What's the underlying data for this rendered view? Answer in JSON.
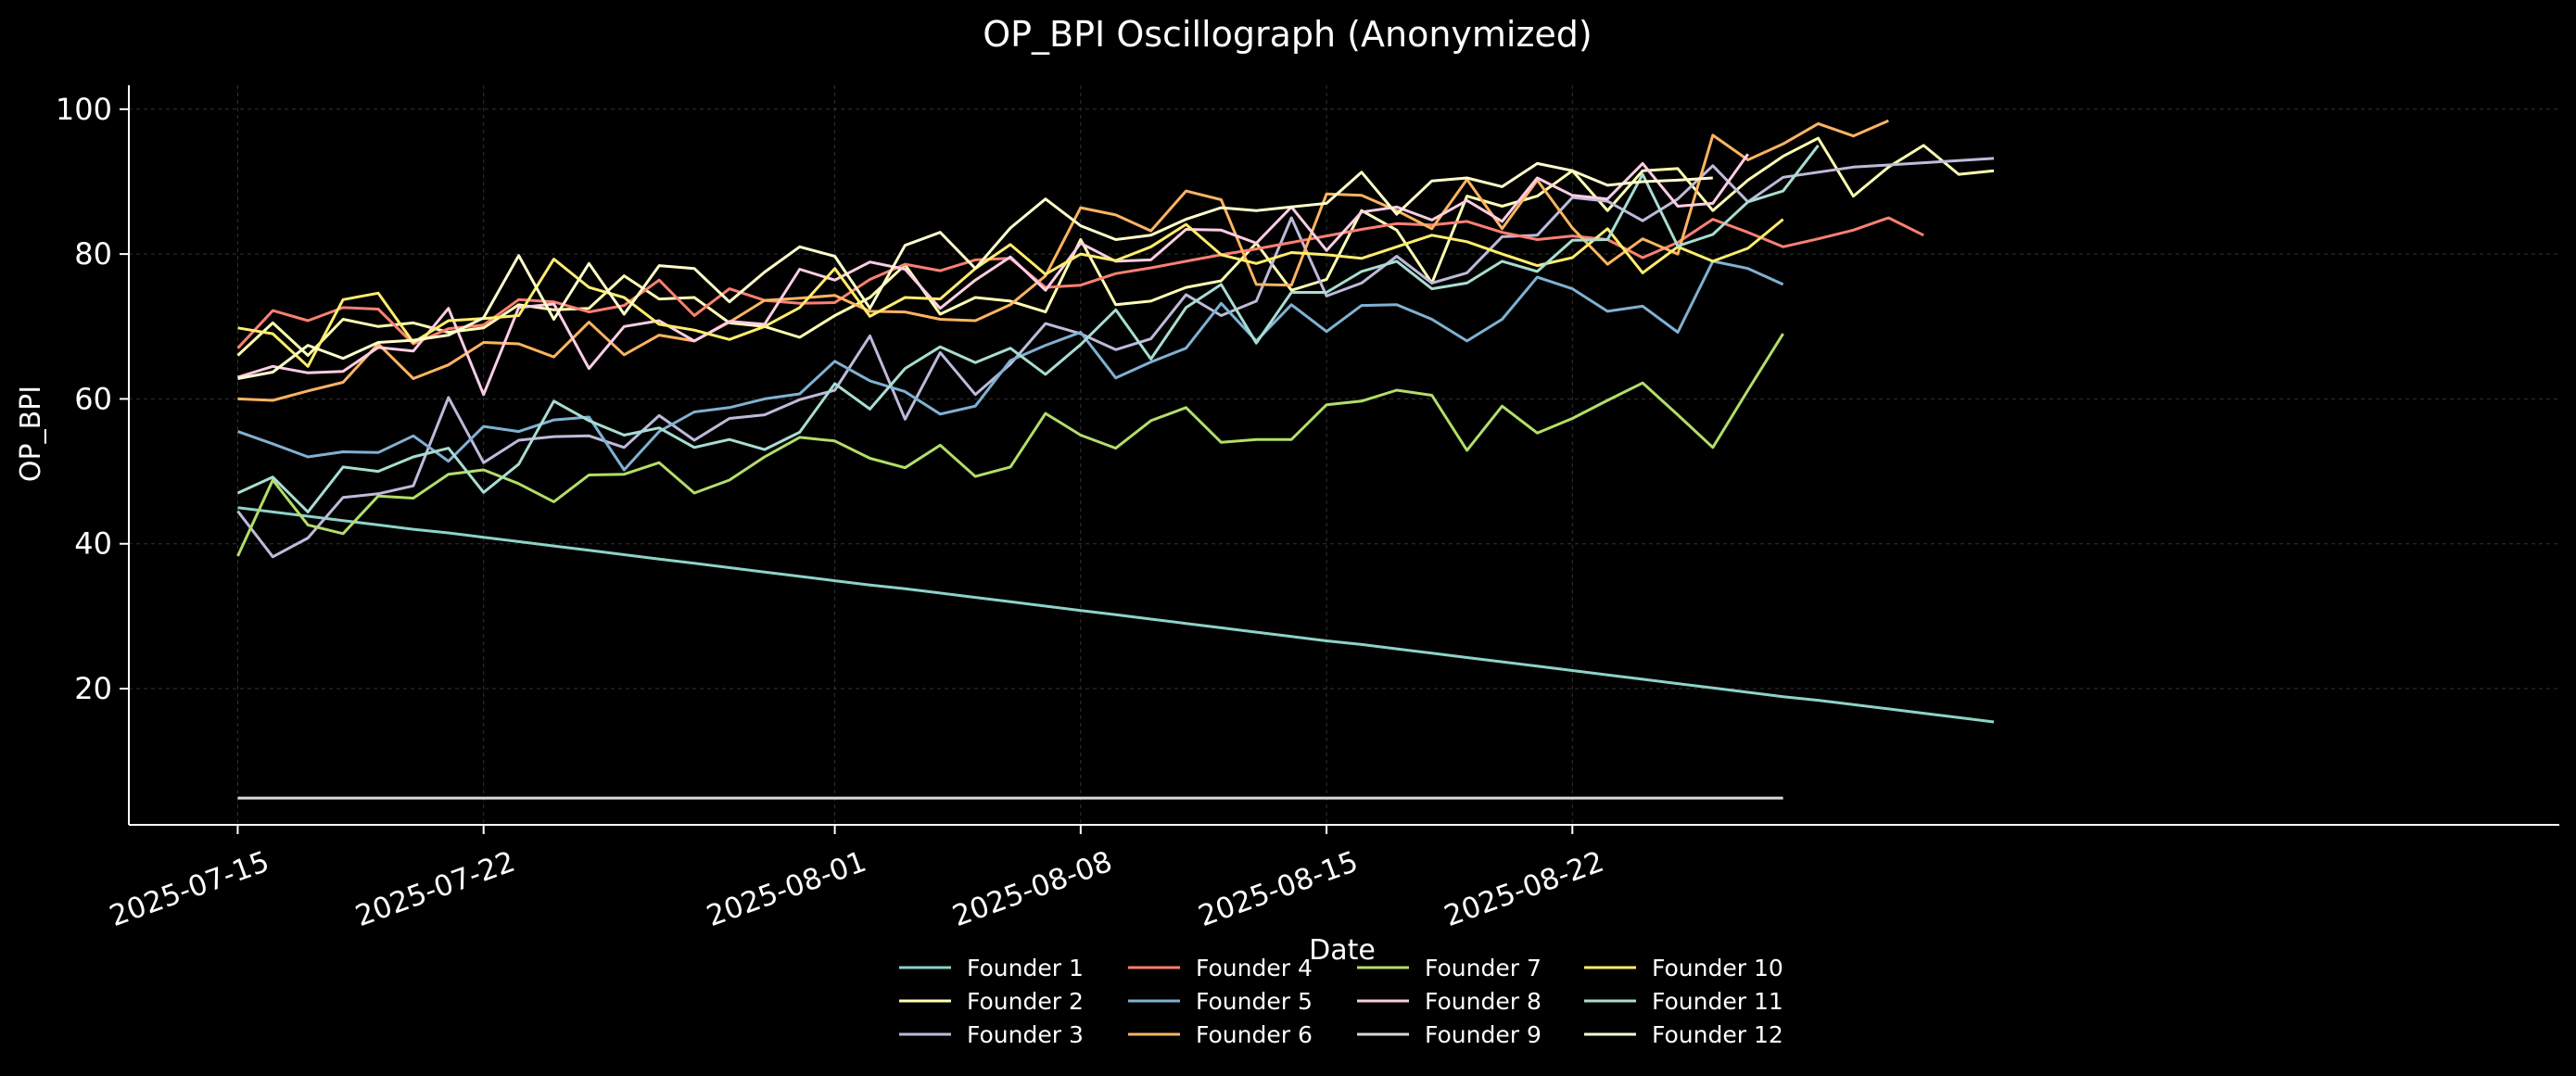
{
  "chart_data": {
    "type": "line",
    "title": "OP_BPI Oscillograph (Anonymized)",
    "xlabel": "Date",
    "ylabel": "OP_BPI",
    "grid": true,
    "legend_position": "bottom-center",
    "background": "#000000",
    "ylim": [
      1.2,
      103.3
    ],
    "yticks": [
      20,
      40,
      60,
      80,
      100
    ],
    "xlim_day_offsets": [
      -3.1,
      66.1
    ],
    "x_start_date": "2025-07-15",
    "xticks": [
      {
        "day": 0,
        "label": "2025-07-15"
      },
      {
        "day": 7,
        "label": "2025-07-22"
      },
      {
        "day": 17,
        "label": "2025-08-01"
      },
      {
        "day": 24,
        "label": "2025-08-08"
      },
      {
        "day": 31,
        "label": "2025-08-15"
      },
      {
        "day": 38,
        "label": "2025-08-22"
      }
    ],
    "series": [
      {
        "name": "Founder 1",
        "color": "#8dd3c7",
        "values": [
          45.0,
          44.4,
          43.8,
          43.2,
          42.6,
          42.0,
          41.5,
          40.9,
          40.3,
          39.7,
          39.1,
          38.5,
          37.9,
          37.3,
          36.7,
          36.1,
          35.5,
          34.9,
          34.3,
          33.8,
          33.2,
          32.6,
          32.0,
          31.4,
          30.8,
          30.2,
          29.6,
          29.0,
          28.4,
          27.8,
          27.2,
          26.6,
          26.1,
          25.5,
          24.9,
          24.3,
          23.7,
          23.1,
          22.5,
          21.9,
          21.3,
          20.7,
          20.1,
          19.5,
          18.9,
          18.4,
          17.8,
          17.2,
          16.6,
          16.0,
          15.4
        ]
      },
      {
        "name": "Founder 2",
        "color": "#ffffb3",
        "values": [
          66.0,
          70.5,
          66.0,
          71.0,
          70.0,
          70.5,
          69.2,
          69.8,
          73.0,
          72.3,
          72.5,
          77.0,
          73.8,
          74.0,
          70.5,
          70.0,
          68.5,
          71.5,
          74.0,
          78.5,
          71.7,
          74.0,
          73.5,
          72.0,
          82.0,
          73.0,
          73.5,
          75.4,
          76.3,
          81.5,
          75.0,
          76.5,
          86.0,
          83.3,
          76.0,
          88.0,
          86.6,
          88.0,
          91.5,
          86.0,
          91.5,
          91.8,
          86.0,
          90.2,
          93.5,
          96.0,
          88.0,
          92.0,
          95.0,
          91.0,
          91.5
        ]
      },
      {
        "name": "Founder 3",
        "color": "#bebada",
        "values": [
          44.5,
          38.2,
          40.8,
          46.4,
          46.9,
          48.0,
          60.2,
          51.2,
          54.3,
          54.8,
          54.9,
          53.3,
          57.7,
          54.3,
          57.3,
          57.8,
          59.9,
          61.2,
          68.7,
          57.2,
          66.4,
          60.6,
          64.8,
          70.4,
          69.0,
          66.8,
          68.3,
          74.4,
          71.5,
          73.5,
          85.0,
          74.2,
          76.0,
          79.7,
          76.0,
          77.4,
          82.4,
          82.6,
          87.8,
          87.3,
          84.6,
          87.6,
          92.2,
          87.2,
          90.6,
          91.3,
          92.0,
          92.3,
          92.6,
          92.9,
          93.2
        ]
      },
      {
        "name": "Founder 4",
        "color": "#fb8072",
        "values": [
          67.0,
          72.2,
          70.8,
          72.6,
          72.4,
          67.6,
          69.7,
          70.2,
          73.7,
          73.4,
          72.0,
          72.9,
          76.4,
          71.5,
          75.2,
          73.6,
          73.2,
          73.3,
          76.5,
          78.6,
          77.7,
          79.2,
          79.4,
          75.4,
          75.7,
          77.3,
          78.1,
          79.0,
          79.9,
          80.7,
          81.6,
          82.5,
          83.4,
          84.2,
          84.0,
          84.5,
          83.0,
          82.0,
          82.5,
          82.0,
          79.5,
          81.6,
          84.8,
          83.0,
          81.0,
          82.1,
          83.3,
          85.0,
          82.6
        ]
      },
      {
        "name": "Founder 5",
        "color": "#80b1d3",
        "values": [
          55.5,
          53.8,
          52.0,
          52.7,
          52.6,
          54.9,
          51.4,
          56.2,
          55.5,
          57.1,
          57.5,
          50.2,
          55.5,
          58.2,
          58.8,
          60.0,
          60.7,
          65.2,
          62.5,
          61.0,
          57.9,
          59.0,
          65.3,
          67.4,
          69.2,
          62.9,
          65.1,
          67.0,
          73.2,
          68.0,
          73.0,
          69.3,
          72.9,
          73.0,
          71.0,
          68.0,
          71.0,
          76.8,
          75.2,
          72.1,
          72.8,
          69.2,
          79.0,
          78.0,
          75.8
        ]
      },
      {
        "name": "Founder 6",
        "color": "#fdb462",
        "values": [
          60.0,
          59.8,
          61.1,
          62.3,
          67.6,
          62.8,
          64.7,
          67.8,
          67.6,
          65.8,
          70.6,
          66.1,
          68.8,
          68.0,
          70.6,
          73.6,
          73.9,
          74.3,
          72.1,
          72.0,
          71.0,
          70.8,
          73.0,
          77.0,
          86.4,
          85.4,
          83.2,
          88.7,
          87.5,
          75.8,
          75.7,
          88.3,
          88.1,
          86.0,
          83.5,
          90.3,
          83.5,
          90.2,
          83.6,
          78.6,
          82.1,
          80.0,
          96.4,
          93.0,
          95.2,
          98.0,
          96.3,
          98.4
        ]
      },
      {
        "name": "Founder 7",
        "color": "#b3de69",
        "values": [
          38.3,
          48.8,
          42.6,
          41.4,
          46.6,
          46.3,
          49.6,
          50.2,
          48.3,
          45.8,
          49.5,
          49.6,
          51.2,
          47.0,
          48.8,
          52.0,
          54.7,
          54.2,
          51.8,
          50.5,
          53.6,
          49.3,
          50.6,
          58.0,
          55.0,
          53.2,
          57.0,
          58.8,
          54.0,
          54.4,
          54.4,
          59.2,
          59.7,
          61.2,
          60.5,
          52.9,
          59.0,
          55.3,
          57.3,
          59.8,
          62.2,
          57.8,
          53.3,
          61.2,
          69.0
        ]
      },
      {
        "name": "Founder 8",
        "color": "#fccde5",
        "values": [
          63.0,
          64.5,
          63.6,
          63.8,
          67.1,
          66.6,
          72.5,
          60.6,
          72.6,
          73.1,
          64.2,
          70.0,
          70.8,
          68.0,
          70.7,
          70.3,
          77.9,
          76.4,
          78.9,
          77.9,
          72.5,
          76.4,
          79.6,
          75.0,
          81.5,
          79.0,
          79.2,
          83.4,
          83.3,
          81.5,
          86.5,
          80.5,
          85.8,
          86.5,
          84.7,
          87.4,
          84.5,
          90.5,
          88.1,
          87.6,
          92.5,
          86.6,
          87.0,
          93.8
        ]
      },
      {
        "name": "Founder 9",
        "color": "#d9d9d9",
        "values": [
          4.9,
          4.9,
          4.9,
          4.9,
          4.9,
          4.9,
          4.9,
          4.9,
          4.9,
          4.9,
          4.9,
          4.9,
          4.9,
          4.9,
          4.9,
          4.9,
          4.9,
          4.9,
          4.9,
          4.9,
          4.9,
          4.9,
          4.9,
          4.9,
          4.9,
          4.9,
          4.9,
          4.9,
          4.9,
          4.9,
          4.9,
          4.9,
          4.9,
          4.9,
          4.9,
          4.9,
          4.9,
          4.9,
          4.9,
          4.9,
          4.9,
          4.9,
          4.9,
          4.9,
          4.9
        ]
      },
      {
        "name": "Founder 10",
        "color": "#ffed6f",
        "values": [
          69.8,
          69.0,
          64.5,
          73.7,
          74.6,
          67.8,
          70.8,
          71.1,
          71.5,
          79.3,
          75.4,
          74.0,
          70.3,
          69.5,
          68.2,
          70.0,
          72.6,
          78.0,
          71.4,
          74.0,
          73.8,
          78.0,
          81.3,
          77.2,
          80.0,
          79.1,
          81.0,
          84.1,
          79.9,
          78.7,
          80.2,
          79.9,
          79.4,
          81.0,
          82.6,
          81.7,
          80.0,
          78.4,
          79.5,
          83.5,
          77.4,
          81.0,
          79.0,
          80.8,
          84.8
        ]
      },
      {
        "name": "Founder 11",
        "color": "#a8ddd2",
        "values": [
          47.0,
          49.2,
          44.4,
          50.6,
          50.0,
          52.0,
          53.2,
          47.1,
          51.0,
          59.7,
          57.0,
          55.0,
          56.0,
          53.3,
          54.4,
          53.0,
          55.4,
          62.1,
          58.6,
          64.2,
          67.2,
          65.0,
          67.0,
          63.4,
          67.5,
          72.3,
          65.5,
          72.6,
          75.8,
          67.7,
          74.7,
          74.7,
          77.6,
          79.0,
          75.2,
          76.0,
          79.0,
          77.6,
          81.9,
          82.0,
          91.0,
          81.1,
          82.7,
          87.2,
          88.7,
          95.0
        ]
      },
      {
        "name": "Founder 12",
        "color": "#ffffcc",
        "values": [
          62.8,
          63.7,
          67.4,
          65.6,
          67.8,
          68.1,
          68.8,
          71.2,
          79.8,
          71.0,
          78.7,
          71.7,
          78.4,
          78.0,
          73.4,
          77.5,
          81.0,
          79.7,
          72.5,
          81.2,
          83.0,
          78.0,
          83.6,
          87.6,
          83.9,
          82.0,
          82.6,
          84.8,
          86.4,
          86.0,
          86.5,
          87.0,
          91.3,
          85.5,
          90.1,
          90.5,
          89.3,
          92.5,
          91.5,
          89.5,
          90.0,
          90.2,
          90.5
        ]
      }
    ]
  }
}
